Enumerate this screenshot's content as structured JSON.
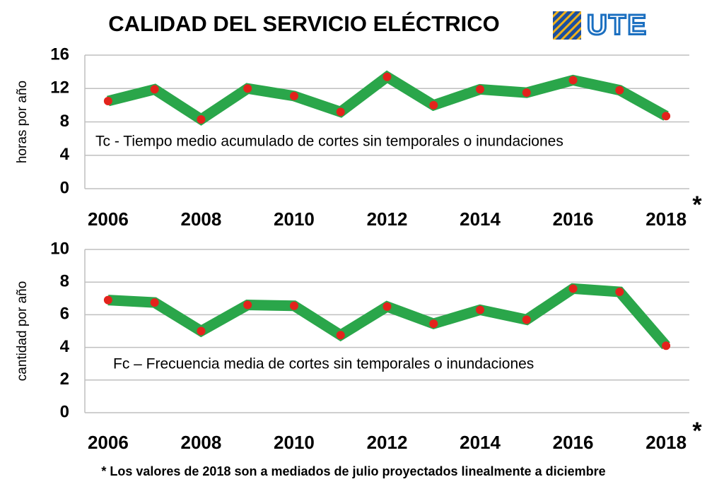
{
  "title": "CALIDAD DEL SERVICIO ELÉCTRICO",
  "logo": "UTE",
  "footnote": "* Los valores de 2018 son a mediados de julio proyectados linealmente a diciembre",
  "chart_data": [
    {
      "type": "line",
      "ylabel": "horas por año",
      "annotation": "Tc  - Tiempo medio acumulado de cortes sin temporales o inundaciones",
      "x": [
        2006,
        2007,
        2008,
        2009,
        2010,
        2011,
        2012,
        2013,
        2014,
        2015,
        2016,
        2017,
        2018
      ],
      "values": [
        10.5,
        11.9,
        8.3,
        12.0,
        11.1,
        9.2,
        13.4,
        10.0,
        11.9,
        11.5,
        13.0,
        11.8,
        8.7
      ],
      "color": "#2aa64a",
      "marker_color": "#e3231c",
      "xlim": [
        2005.5,
        2018.5
      ],
      "xticks": [
        2006,
        2008,
        2010,
        2012,
        2014,
        2016,
        2018
      ],
      "ylim": [
        0,
        16
      ],
      "yticks": [
        0,
        4,
        8,
        12,
        16
      ],
      "grid": true,
      "footnote_marker": "*"
    },
    {
      "type": "line",
      "ylabel": "cantidad por año",
      "annotation": "Fc – Frecuencia media de cortes sin temporales o inundaciones",
      "x": [
        2006,
        2007,
        2008,
        2009,
        2010,
        2011,
        2012,
        2013,
        2014,
        2015,
        2016,
        2017,
        2018
      ],
      "values": [
        6.9,
        6.75,
        5.0,
        6.6,
        6.55,
        4.75,
        6.5,
        5.45,
        6.3,
        5.7,
        7.6,
        7.4,
        4.1
      ],
      "color": "#2aa64a",
      "marker_color": "#e3231c",
      "xlim": [
        2005.5,
        2018.5
      ],
      "xticks": [
        2006,
        2008,
        2010,
        2012,
        2014,
        2016,
        2018
      ],
      "ylim": [
        0,
        10
      ],
      "yticks": [
        0,
        2,
        4,
        6,
        8,
        10
      ],
      "grid": true,
      "footnote_marker": "*"
    }
  ]
}
